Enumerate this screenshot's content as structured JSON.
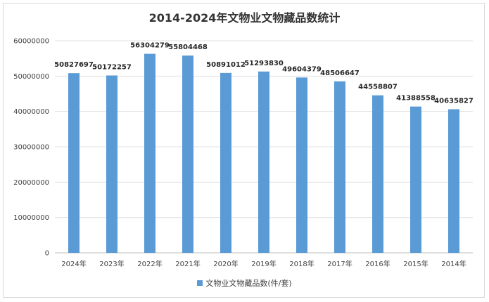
{
  "chart_data": {
    "type": "bar",
    "title": "2014-2024年文物业文物藏品数统计",
    "categories": [
      "2024年",
      "2023年",
      "2022年",
      "2021年",
      "2020年",
      "2019年",
      "2018年",
      "2017年",
      "2016年",
      "2015年",
      "2014年"
    ],
    "series": [
      {
        "name": "文物业文物藏品数(件/套)",
        "values": [
          50827697,
          50172257,
          56304279,
          55804468,
          50891012,
          51293830,
          49604379,
          48506647,
          44558807,
          41388558,
          40635827
        ]
      }
    ],
    "ylim": [
      0,
      60000000
    ],
    "yticks": [
      0,
      10000000,
      20000000,
      30000000,
      40000000,
      50000000,
      60000000
    ],
    "grid": true,
    "legend_position": "bottom",
    "colors": {
      "bar": "#5b9bd5",
      "grid": "#e0e0e0",
      "axis": "#bfbfbf"
    }
  }
}
